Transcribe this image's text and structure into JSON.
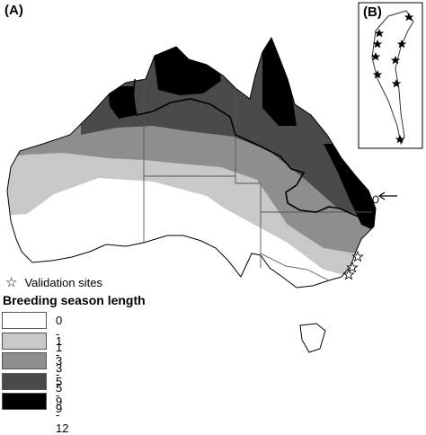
{
  "panels": {
    "a_label": "(A)",
    "b_label": "(B)"
  },
  "legend": {
    "validation_label": "Validation sites",
    "validation_icon": "star-outline-icon",
    "title": "Breeding season length",
    "classes": [
      {
        "label": "0 - 1",
        "color": "#ffffff"
      },
      {
        "label": "1 - 3",
        "color": "#c8c8c8"
      },
      {
        "label": "3 - 5",
        "color": "#8e8e8e"
      },
      {
        "label": "5 - 9",
        "color": "#4a4a4a"
      },
      {
        "label": "9 - 12",
        "color": "#000000"
      }
    ]
  },
  "colors": {
    "outline": "#000000",
    "state_borders": "#555555"
  }
}
